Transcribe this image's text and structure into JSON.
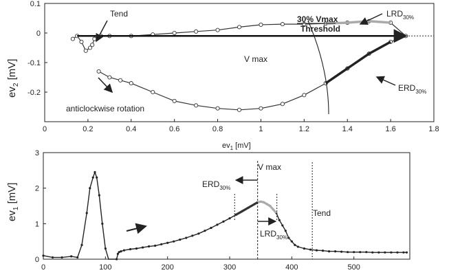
{
  "chart_data": [
    {
      "type": "line",
      "xlabel": "ev",
      "xlabel_sub": "1",
      "xlabel_unit": " [mV]",
      "ylabel": "ev",
      "ylabel_sub": "2",
      "ylabel_unit": " [mV]",
      "xlim": [
        0,
        1.8
      ],
      "ylim": [
        -0.3,
        0.1
      ],
      "x_ticks": [
        "0",
        "0.2",
        "0.4",
        "0.6",
        "0.8",
        "1",
        "1.2",
        "1.4",
        "1.6",
        "1.8"
      ],
      "y_ticks": [
        "0.1",
        "0",
        "-0.1",
        "-0.2"
      ],
      "loop_points": [
        [
          0.13,
          -0.02
        ],
        [
          0.15,
          -0.01
        ],
        [
          0.17,
          -0.03
        ],
        [
          0.19,
          -0.06
        ],
        [
          0.21,
          -0.05
        ],
        [
          0.22,
          -0.04
        ],
        [
          0.23,
          -0.02
        ],
        [
          0.26,
          -0.01
        ],
        [
          0.3,
          -0.01
        ],
        [
          0.4,
          -0.01
        ],
        [
          0.5,
          -0.005
        ],
        [
          0.6,
          0.0
        ],
        [
          0.7,
          0.005
        ],
        [
          0.8,
          0.01
        ],
        [
          0.9,
          0.02
        ],
        [
          1.0,
          0.028
        ],
        [
          1.1,
          0.03
        ],
        [
          1.2,
          0.03
        ],
        [
          1.3,
          0.032
        ],
        [
          1.4,
          0.035
        ],
        [
          1.5,
          0.04
        ],
        [
          1.6,
          0.035
        ],
        [
          1.67,
          -0.01
        ],
        [
          1.6,
          -0.03
        ],
        [
          1.5,
          -0.07
        ],
        [
          1.4,
          -0.12
        ],
        [
          1.3,
          -0.17
        ],
        [
          1.2,
          -0.21
        ],
        [
          1.1,
          -0.24
        ],
        [
          1.0,
          -0.255
        ],
        [
          0.9,
          -0.26
        ],
        [
          0.8,
          -0.255
        ],
        [
          0.7,
          -0.245
        ],
        [
          0.6,
          -0.23
        ],
        [
          0.5,
          -0.2
        ],
        [
          0.4,
          -0.17
        ],
        [
          0.35,
          -0.16
        ],
        [
          0.3,
          -0.15
        ],
        [
          0.25,
          -0.13
        ]
      ],
      "vmax_vector": {
        "x0": 0.15,
        "y0": -0.01,
        "x1": 1.67,
        "y1": -0.01
      },
      "threshold_arc_label": [
        "30% Vmax",
        "Threshold"
      ],
      "annotations": {
        "tend": "Tend",
        "vmax": "V max",
        "lrd": "LRD",
        "lrd_sub": "30%",
        "erd": "ERD",
        "erd_sub": "30%",
        "rotation": "anticlockwise rotation"
      }
    },
    {
      "type": "line",
      "ylabel": "ev",
      "ylabel_sub": "1",
      "ylabel_unit": " [mV]",
      "xlim": [
        0,
        590
      ],
      "ylim": [
        0,
        3
      ],
      "x_ticks": [
        "0",
        "100",
        "200",
        "300",
        "400",
        "500"
      ],
      "y_ticks": [
        "3",
        "2",
        "1",
        "0"
      ],
      "x": [
        0,
        15,
        30,
        45,
        55,
        62,
        70,
        75,
        80,
        83,
        86,
        90,
        95,
        100,
        105,
        110,
        115,
        118,
        120,
        122,
        125,
        130,
        140,
        150,
        160,
        170,
        180,
        190,
        200,
        210,
        220,
        230,
        240,
        250,
        260,
        270,
        280,
        290,
        300,
        310,
        320,
        330,
        340,
        345,
        350,
        355,
        360,
        365,
        370,
        375,
        380,
        385,
        390,
        395,
        400,
        405,
        410,
        420,
        430,
        440,
        450,
        460,
        470,
        480,
        490,
        500,
        510,
        520,
        530,
        540,
        550,
        560,
        570,
        580,
        585
      ],
      "y": [
        0.1,
        0.05,
        0.05,
        0.08,
        0.05,
        0.4,
        1.3,
        2.0,
        2.3,
        2.45,
        2.3,
        1.8,
        1.0,
        0.3,
        -0.2,
        -0.5,
        -0.4,
        0.0,
        0.15,
        0.2,
        0.22,
        0.25,
        0.28,
        0.3,
        0.33,
        0.36,
        0.38,
        0.42,
        0.46,
        0.5,
        0.55,
        0.6,
        0.66,
        0.72,
        0.8,
        0.88,
        0.97,
        1.06,
        1.15,
        1.25,
        1.35,
        1.45,
        1.55,
        1.6,
        1.62,
        1.6,
        1.55,
        1.5,
        1.4,
        1.3,
        1.1,
        0.95,
        0.8,
        0.6,
        0.5,
        0.4,
        0.35,
        0.3,
        0.27,
        0.25,
        0.24,
        0.22,
        0.22,
        0.21,
        0.2,
        0.2,
        0.2,
        0.2,
        0.19,
        0.19,
        0.19,
        0.19,
        0.19,
        0.19,
        0.19
      ],
      "markers": {
        "erd_start": 308,
        "vmax": 345,
        "lrd_end": 376,
        "tend": 433
      },
      "annotations": {
        "vmax": "V max",
        "erd": "ERD",
        "erd_sub": "30%",
        "lrd": "LRD",
        "lrd_sub": "30%",
        "tend": "Tend"
      }
    }
  ]
}
